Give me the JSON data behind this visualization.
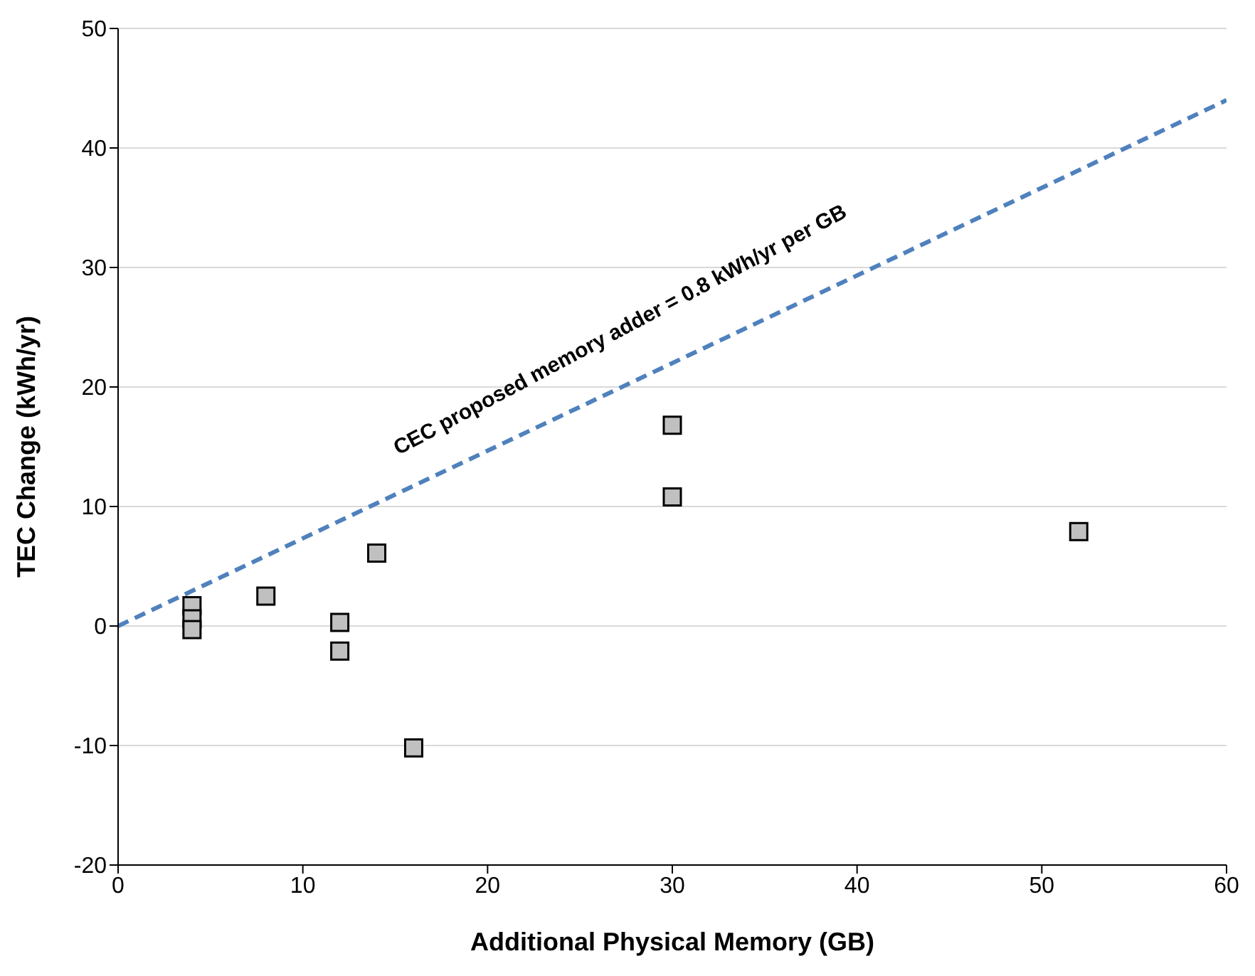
{
  "chart_data": {
    "type": "scatter",
    "xlabel": "Additional Physical Memory (GB)",
    "ylabel": "TEC Change (kWh/yr)",
    "xlim": [
      0,
      60
    ],
    "xticks": [
      0,
      10,
      20,
      30,
      40,
      50,
      60
    ],
    "ylim": [
      -20,
      50
    ],
    "yticks": [
      -20,
      -10,
      0,
      10,
      20,
      30,
      40,
      50
    ],
    "grid": "y",
    "legend": false,
    "marker": "square",
    "series": [
      {
        "color": "#c0c0c0",
        "x": [
          4,
          4,
          4,
          8,
          12,
          12,
          14,
          16,
          30,
          30,
          52
        ],
        "values": [
          1.7,
          0.6,
          -0.3,
          2.5,
          0.3,
          -2.1,
          6.1,
          -10.2,
          16.8,
          10.8,
          7.9
        ]
      },
      {
        "type": "line",
        "color": "#4f81bd",
        "line_style": "dashed",
        "marker": "none",
        "x": [
          0,
          60
        ],
        "values": [
          0,
          44
        ]
      }
    ],
    "annotations": [
      "CEC proposed memory adder = 0.8 kWh/yr per GB"
    ]
  }
}
